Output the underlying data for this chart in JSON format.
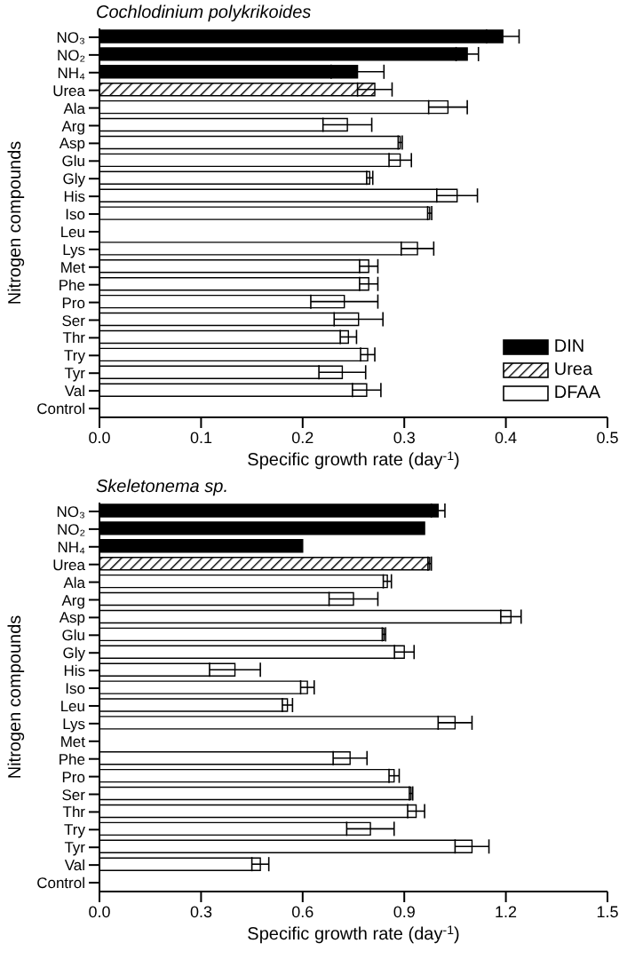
{
  "chart_data": [
    {
      "type": "bar",
      "orientation": "horizontal",
      "title": "Cochlodinium polykrikoides",
      "xlabel": "Specific growth rate (day$^{-1}$)",
      "ylabel": "Nitrogen compounds",
      "categories": [
        "NO₃",
        "NO₂",
        "NH₄",
        "Urea",
        "Ala",
        "Arg",
        "Asp",
        "Glu",
        "Gly",
        "His",
        "Iso",
        "Leu",
        "Lys",
        "Met",
        "Phe",
        "Pro",
        "Ser",
        "Thr",
        "Try",
        "Tyr",
        "Val",
        "Control"
      ],
      "series": [
        {
          "name": "DIN",
          "color": "#000000",
          "values": [
            0.397,
            0.362,
            0.254,
            null,
            null,
            null,
            null,
            null,
            null,
            null,
            null,
            null,
            null,
            null,
            null,
            null,
            null,
            null,
            null,
            null,
            null,
            null
          ],
          "errors": [
            0.016,
            0.011,
            0.026,
            null,
            null,
            null,
            null,
            null,
            null,
            null,
            null,
            null,
            null,
            null,
            null,
            null,
            null,
            null,
            null,
            null,
            null,
            null
          ]
        },
        {
          "name": "Urea",
          "color": "#000000",
          "values": [
            null,
            null,
            null,
            0.271,
            null,
            null,
            null,
            null,
            null,
            null,
            null,
            null,
            null,
            null,
            null,
            null,
            null,
            null,
            null,
            null,
            null,
            null
          ],
          "errors": [
            null,
            null,
            null,
            0.017,
            null,
            null,
            null,
            null,
            null,
            null,
            null,
            null,
            null,
            null,
            null,
            null,
            null,
            null,
            null,
            null,
            null,
            null
          ]
        },
        {
          "name": "DFAA",
          "color": "#ffffff",
          "values": [
            null,
            null,
            null,
            null,
            0.343,
            0.244,
            0.296,
            0.296,
            0.266,
            0.352,
            0.325,
            0,
            0.313,
            0.265,
            0.265,
            0.241,
            0.255,
            0.245,
            0.264,
            0.239,
            0.263,
            0
          ],
          "errors": [
            null,
            null,
            null,
            null,
            0.019,
            0.024,
            0.002,
            0.011,
            0.003,
            0.02,
            0.002,
            null,
            0.016,
            0.009,
            0.009,
            0.033,
            0.024,
            0.008,
            0.007,
            0.023,
            0.014,
            null
          ]
        }
      ],
      "xlim": [
        0,
        0.5
      ],
      "xticks": [
        {
          "value": 0,
          "label": "0.0"
        },
        0.1,
        0.2,
        0.3,
        0.4,
        0.5
      ],
      "legend": "bottom right"
    },
    {
      "type": "bar",
      "orientation": "horizontal",
      "title": "Skeletonema sp.",
      "xlabel": "Specific growth rate (day$^{-1}$)",
      "ylabel": "Nitrogen compounds",
      "categories": [
        "NO₃",
        "NO₂",
        "NH₄",
        "Urea",
        "Ala",
        "Arg",
        "Asp",
        "Glu",
        "Gly",
        "His",
        "Iso",
        "Leu",
        "Lys",
        "Met",
        "Phe",
        "Pro",
        "Ser",
        "Thr",
        "Try",
        "Tyr",
        "Val",
        "Control"
      ],
      "series": [
        {
          "color": "#000000",
          "values": [
            1.0,
            0.96,
            0.6,
            null,
            null,
            null,
            null,
            null,
            null,
            null,
            null,
            null,
            null,
            null,
            null,
            null,
            null,
            null,
            null,
            null,
            null,
            null
          ],
          "errors": [
            0.02,
            null,
            null,
            null,
            null,
            null,
            null,
            null,
            null,
            null,
            null,
            null,
            null,
            null,
            null,
            null,
            null,
            null,
            null,
            null,
            null,
            null
          ]
        },
        {
          "color": "#000000",
          "values": [
            null,
            null,
            null,
            0.975,
            null,
            null,
            null,
            null,
            null,
            null,
            null,
            null,
            null,
            null,
            null,
            null,
            null,
            null,
            null,
            null,
            null,
            null
          ],
          "errors": [
            null,
            null,
            null,
            0.005,
            null,
            null,
            null,
            null,
            null,
            null,
            null,
            null,
            null,
            null,
            null,
            null,
            null,
            null,
            null,
            null,
            null,
            null
          ]
        },
        {
          "color": "#ffffff",
          "values": [
            null,
            null,
            null,
            null,
            0.85,
            0.75,
            1.215,
            0.84,
            0.9,
            0.4,
            0.614,
            0.555,
            1.05,
            0,
            0.74,
            0.87,
            0.92,
            0.935,
            0.8,
            1.1,
            0.475,
            0
          ],
          "errors": [
            null,
            null,
            null,
            null,
            0.012,
            0.072,
            0.03,
            0.005,
            0.029,
            0.075,
            0.02,
            0.015,
            0.05,
            null,
            0.05,
            0.015,
            0.005,
            0.025,
            0.07,
            0.05,
            0.025,
            null
          ]
        }
      ],
      "xlim": [
        0,
        1.5
      ],
      "xticks": [
        {
          "value": 0,
          "label": "0.0"
        },
        0.3,
        0.6,
        0.9,
        1.2,
        1.5
      ]
    }
  ]
}
